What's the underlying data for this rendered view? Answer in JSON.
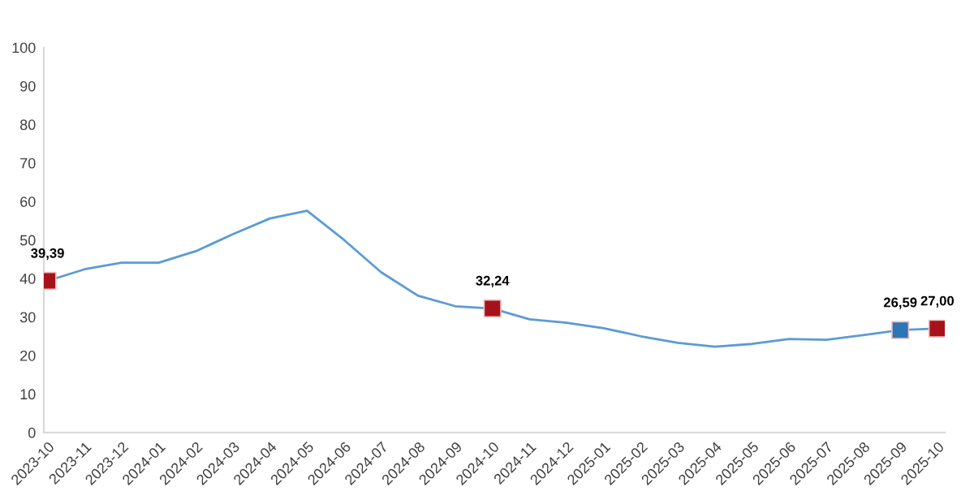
{
  "chart_data": {
    "type": "line",
    "categories": [
      "2023-10",
      "2023-11",
      "2023-12",
      "2024-01",
      "2024-02",
      "2024-03",
      "2024-04",
      "2024-05",
      "2024-06",
      "2024-07",
      "2024-08",
      "2024-09",
      "2024-10",
      "2024-11",
      "2024-12",
      "2025-01",
      "2025-02",
      "2025-03",
      "2025-04",
      "2025-05",
      "2025-06",
      "2025-07",
      "2025-08",
      "2025-09",
      "2025-10"
    ],
    "series": [
      {
        "color": "#5b9bd5",
        "values": [
          39.4,
          42.4,
          44.1,
          44.1,
          47.1,
          51.5,
          55.6,
          57.6,
          50.0,
          41.6,
          35.5,
          32.8,
          32.2,
          29.4,
          28.5,
          27.1,
          25.0,
          23.3,
          22.3,
          23.0,
          24.3,
          24.1,
          25.3,
          26.6,
          27.0
        ]
      },
      {
        "type": "scatter",
        "color": "#a6121a",
        "marker": "square",
        "values": [
          39.39,
          null,
          null,
          null,
          null,
          null,
          null,
          null,
          null,
          null,
          null,
          null,
          32.24,
          null,
          null,
          null,
          null,
          null,
          null,
          null,
          null,
          null,
          null,
          null,
          27.0
        ],
        "value_labels": [
          "39,39",
          null,
          null,
          null,
          null,
          null,
          null,
          null,
          null,
          null,
          null,
          null,
          "32,24",
          null,
          null,
          null,
          null,
          null,
          null,
          null,
          null,
          null,
          null,
          null,
          "27,00"
        ]
      },
      {
        "type": "scatter",
        "color": "#2e75b6",
        "marker": "square",
        "values": [
          null,
          null,
          null,
          null,
          null,
          null,
          null,
          null,
          null,
          null,
          null,
          null,
          null,
          null,
          null,
          null,
          null,
          null,
          null,
          null,
          null,
          null,
          null,
          26.59,
          null
        ],
        "value_labels": [
          null,
          null,
          null,
          null,
          null,
          null,
          null,
          null,
          null,
          null,
          null,
          null,
          null,
          null,
          null,
          null,
          null,
          null,
          null,
          null,
          null,
          null,
          null,
          "26,59",
          null
        ]
      }
    ],
    "ylim": [
      0,
      100
    ],
    "yticks": [
      0,
      10,
      20,
      30,
      40,
      50,
      60,
      70,
      80,
      90,
      100
    ],
    "grid": false,
    "legend": false
  }
}
